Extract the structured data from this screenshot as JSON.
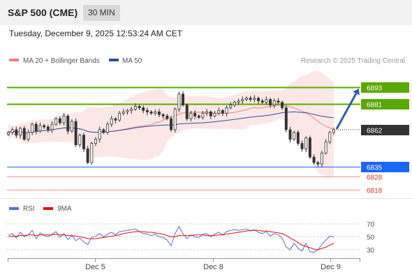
{
  "header": {
    "title": "S&P 500 (CME)",
    "timeframe": "30 MIN",
    "datetime": "Tuesday, December 9, 2025 12:53:24 AM CET"
  },
  "legend": {
    "ma20_label": "MA 20 + Bollinger Bands",
    "ma20_color": "#f08080",
    "ma50_label": "MA 50",
    "ma50_color": "#2e4e9e"
  },
  "credit": "Research © 2025 Trading Central",
  "rsi_legend": {
    "rsi_label": "RSI",
    "rsi_color": "#5470d0",
    "ma9_label": "9MA",
    "ma9_color": "#dd1111"
  },
  "chart_data": [
    {
      "type": "candlestick",
      "title": "S&P 500 (CME) 30 MIN",
      "price_range": [
        6810,
        6900
      ],
      "last_price": 6862,
      "levels": [
        {
          "value": 6893,
          "label": "6893",
          "kind": "resistance",
          "color": "#5aa800"
        },
        {
          "value": 6881,
          "label": "6881",
          "kind": "resistance",
          "color": "#5aa800"
        },
        {
          "value": 6862,
          "label": "6862",
          "kind": "last",
          "color": "#333333"
        },
        {
          "value": 6835,
          "label": "6835",
          "kind": "support",
          "color": "#1a66ff"
        },
        {
          "value": 6828,
          "label": "6828",
          "kind": "support",
          "color": "#e03030"
        },
        {
          "value": 6818,
          "label": "6818",
          "kind": "support",
          "color": "#e03030"
        }
      ],
      "x_ticks": [
        "Dec 5",
        "Dec 8",
        "Dec 9"
      ],
      "close_path": [
        6860,
        6862,
        6858,
        6863,
        6855,
        6860,
        6866,
        6861,
        6865,
        6864,
        6862,
        6866,
        6870,
        6867,
        6872,
        6861,
        6868,
        6851,
        6858,
        6848,
        6838,
        6852,
        6855,
        6862,
        6860,
        6866,
        6870,
        6869,
        6874,
        6875,
        6876,
        6877,
        6879,
        6878,
        6876,
        6875,
        6874,
        6875,
        6873,
        6872,
        6870,
        6862,
        6877,
        6888,
        6880,
        6870,
        6874,
        6872,
        6871,
        6874,
        6875,
        6872,
        6874,
        6876,
        6874,
        6878,
        6880,
        6882,
        6883,
        6884,
        6885,
        6884,
        6885,
        6883,
        6882,
        6884,
        6880,
        6883,
        6882,
        6878,
        6862,
        6855,
        6860,
        6852,
        6848,
        6856,
        6842,
        6838,
        6837,
        6845,
        6853,
        6860,
        6862
      ]
    },
    {
      "type": "line",
      "title": "RSI",
      "ylim": [
        20,
        80
      ],
      "y_ticks": [
        70,
        50,
        30
      ],
      "series": [
        {
          "name": "RSI",
          "values": [
            52,
            55,
            48,
            57,
            50,
            53,
            60,
            47,
            56,
            52,
            50,
            54,
            58,
            49,
            55,
            46,
            52,
            44,
            48,
            42,
            38,
            49,
            51,
            55,
            50,
            54,
            57,
            53,
            58,
            59,
            60,
            61,
            62,
            58,
            55,
            54,
            52,
            54,
            50,
            49,
            45,
            36,
            55,
            66,
            55,
            47,
            53,
            50,
            49,
            54,
            55,
            50,
            54,
            57,
            53,
            58,
            60,
            61,
            60,
            61,
            62,
            59,
            61,
            57,
            55,
            58,
            51,
            55,
            53,
            48,
            34,
            30,
            40,
            32,
            28,
            40,
            27,
            26,
            30,
            38,
            45,
            51,
            50
          ]
        },
        {
          "name": "9MA",
          "values": [
            50,
            51,
            51,
            52,
            52,
            53,
            53,
            52,
            53,
            53,
            53,
            53,
            54,
            53,
            53,
            52,
            52,
            51,
            50,
            49,
            47,
            47,
            47,
            48,
            49,
            50,
            51,
            52,
            53,
            55,
            56,
            57,
            58,
            58,
            58,
            57,
            57,
            56,
            55,
            54,
            52,
            50,
            50,
            52,
            52,
            52,
            52,
            53,
            53,
            53,
            52,
            52,
            52,
            53,
            53,
            54,
            55,
            56,
            57,
            58,
            59,
            60,
            60,
            60,
            59,
            59,
            58,
            57,
            56,
            55,
            52,
            48,
            45,
            41,
            37,
            35,
            33,
            31,
            30,
            32,
            34,
            37,
            40
          ]
        }
      ]
    }
  ]
}
